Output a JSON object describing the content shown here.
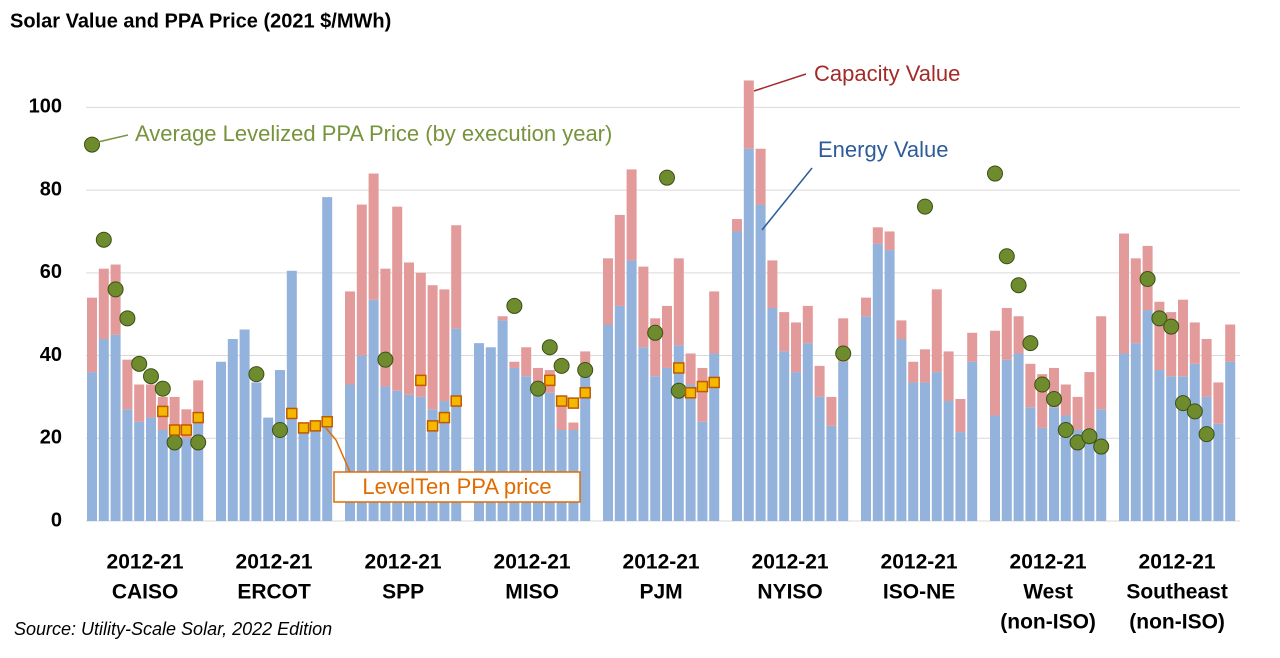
{
  "chart_data": {
    "type": "bar",
    "title": "Solar Value and PPA Price (2021 $/MWh)",
    "source": "Source: Utility-Scale Solar, 2022 Edition",
    "ylim": [
      0,
      110
    ],
    "yticks": [
      0,
      20,
      40,
      60,
      80,
      100
    ],
    "grid": true,
    "stacked": true,
    "groups": [
      [
        "2012-21",
        "CAISO"
      ],
      [
        "2012-21",
        "ERCOT"
      ],
      [
        "2012-21",
        "SPP"
      ],
      [
        "2012-21",
        "MISO"
      ],
      [
        "2012-21",
        "PJM"
      ],
      [
        "2012-21",
        "NYISO"
      ],
      [
        "2012-21",
        "ISO-NE"
      ],
      [
        "2012-21",
        "West",
        "(non-ISO)"
      ],
      [
        "2012-21",
        "Southeast",
        "(non-ISO)"
      ]
    ],
    "series": [
      {
        "name": "Energy Value",
        "type": "bar",
        "color": "#93b3dc",
        "values": [
          [
            36,
            44,
            45,
            27,
            24,
            25,
            22,
            21,
            20,
            24
          ],
          [
            38.5,
            44,
            46.3,
            33.5,
            25,
            36.5,
            60.5,
            23,
            23,
            78.3
          ],
          [
            33,
            40,
            53.5,
            32.5,
            31.5,
            30.5,
            30,
            27,
            29,
            46.5
          ],
          [
            43,
            42,
            48.5,
            37,
            35,
            33,
            31,
            22,
            22,
            35
          ],
          [
            47.5,
            52,
            63,
            42,
            35,
            37,
            42.5,
            33,
            24,
            40.5
          ],
          [
            70,
            90,
            76.5,
            51.5,
            41,
            36,
            43,
            30,
            23,
            38.5
          ],
          [
            49.5,
            67,
            65.5,
            44,
            33.5,
            33.5,
            36,
            29,
            21.5,
            38.5
          ],
          [
            25.5,
            39,
            40.5,
            27.5,
            22.5,
            27.5,
            25.5,
            22,
            21.5,
            27
          ],
          [
            40.5,
            43,
            51,
            36.5,
            35,
            35,
            38,
            30,
            23.5,
            38.5
          ]
        ]
      },
      {
        "name": "Capacity Value",
        "type": "bar",
        "color": "#e39a9a",
        "values": [
          [
            18,
            17,
            17,
            12,
            9,
            8,
            8,
            9,
            7,
            10
          ],
          [
            0,
            0,
            0,
            0,
            0,
            0,
            0,
            0,
            0,
            0
          ],
          [
            22.5,
            36.5,
            30.5,
            28.5,
            44.5,
            32,
            30,
            30,
            27,
            25
          ],
          [
            0,
            0,
            1,
            1.5,
            7,
            4,
            5.5,
            7,
            1.8,
            6
          ],
          [
            16,
            22,
            22,
            19.5,
            14,
            15,
            21,
            7.5,
            13,
            15
          ],
          [
            3,
            16.5,
            13.5,
            11.5,
            9.5,
            12,
            9,
            7.5,
            7,
            10.5
          ],
          [
            4.5,
            4,
            4.5,
            4.5,
            5,
            8,
            20,
            12,
            8,
            7
          ],
          [
            20.5,
            12.5,
            9,
            10.5,
            13,
            9.5,
            7.5,
            8,
            14.5,
            22.5
          ],
          [
            29,
            20.5,
            15.5,
            16.5,
            15.5,
            18.5,
            10,
            14,
            10,
            9
          ]
        ]
      },
      {
        "name": "Average Levelized PPA Price (by execution year)",
        "type": "scatter",
        "marker": "circle",
        "color": "#6e8b2e",
        "values": [
          [
            91,
            68,
            56,
            49,
            38,
            35,
            32,
            19,
            null,
            19
          ],
          [
            null,
            null,
            null,
            35.5,
            null,
            22,
            null,
            null,
            null,
            null
          ],
          [
            null,
            null,
            null,
            39,
            null,
            null,
            null,
            null,
            null,
            null
          ],
          [
            null,
            null,
            null,
            52,
            null,
            32,
            42,
            37.5,
            null,
            36.5
          ],
          [
            null,
            null,
            null,
            null,
            45.5,
            83,
            31.5,
            null,
            null,
            null
          ],
          [
            null,
            null,
            null,
            null,
            null,
            null,
            null,
            null,
            null,
            40.5
          ],
          [
            null,
            null,
            null,
            null,
            null,
            76,
            null,
            null,
            null,
            null
          ],
          [
            84,
            64,
            57,
            43,
            33,
            29.5,
            22,
            19,
            20.5,
            18
          ],
          [
            null,
            null,
            58.5,
            49,
            47,
            28.5,
            26.5,
            21,
            null,
            null
          ]
        ]
      },
      {
        "name": "LevelTen PPA price",
        "type": "scatter",
        "marker": "square",
        "color": "#f5b800",
        "values": [
          [
            null,
            null,
            null,
            null,
            null,
            null,
            26.5,
            22,
            22,
            25
          ],
          [
            null,
            null,
            null,
            null,
            null,
            null,
            26,
            22.5,
            23,
            24
          ],
          [
            null,
            null,
            null,
            null,
            null,
            null,
            34,
            23,
            25,
            29
          ],
          [
            null,
            null,
            null,
            null,
            null,
            null,
            34,
            29,
            28.5,
            31
          ],
          [
            null,
            null,
            null,
            null,
            null,
            null,
            37,
            31,
            32.5,
            33.5
          ],
          [
            null,
            null,
            null,
            null,
            null,
            null,
            null,
            null,
            null,
            null
          ],
          [
            null,
            null,
            null,
            null,
            null,
            null,
            null,
            null,
            null,
            null
          ],
          [
            null,
            null,
            null,
            null,
            null,
            null,
            null,
            null,
            null,
            null
          ],
          [
            null,
            null,
            null,
            null,
            null,
            null,
            null,
            null,
            null,
            null
          ]
        ]
      }
    ]
  }
}
